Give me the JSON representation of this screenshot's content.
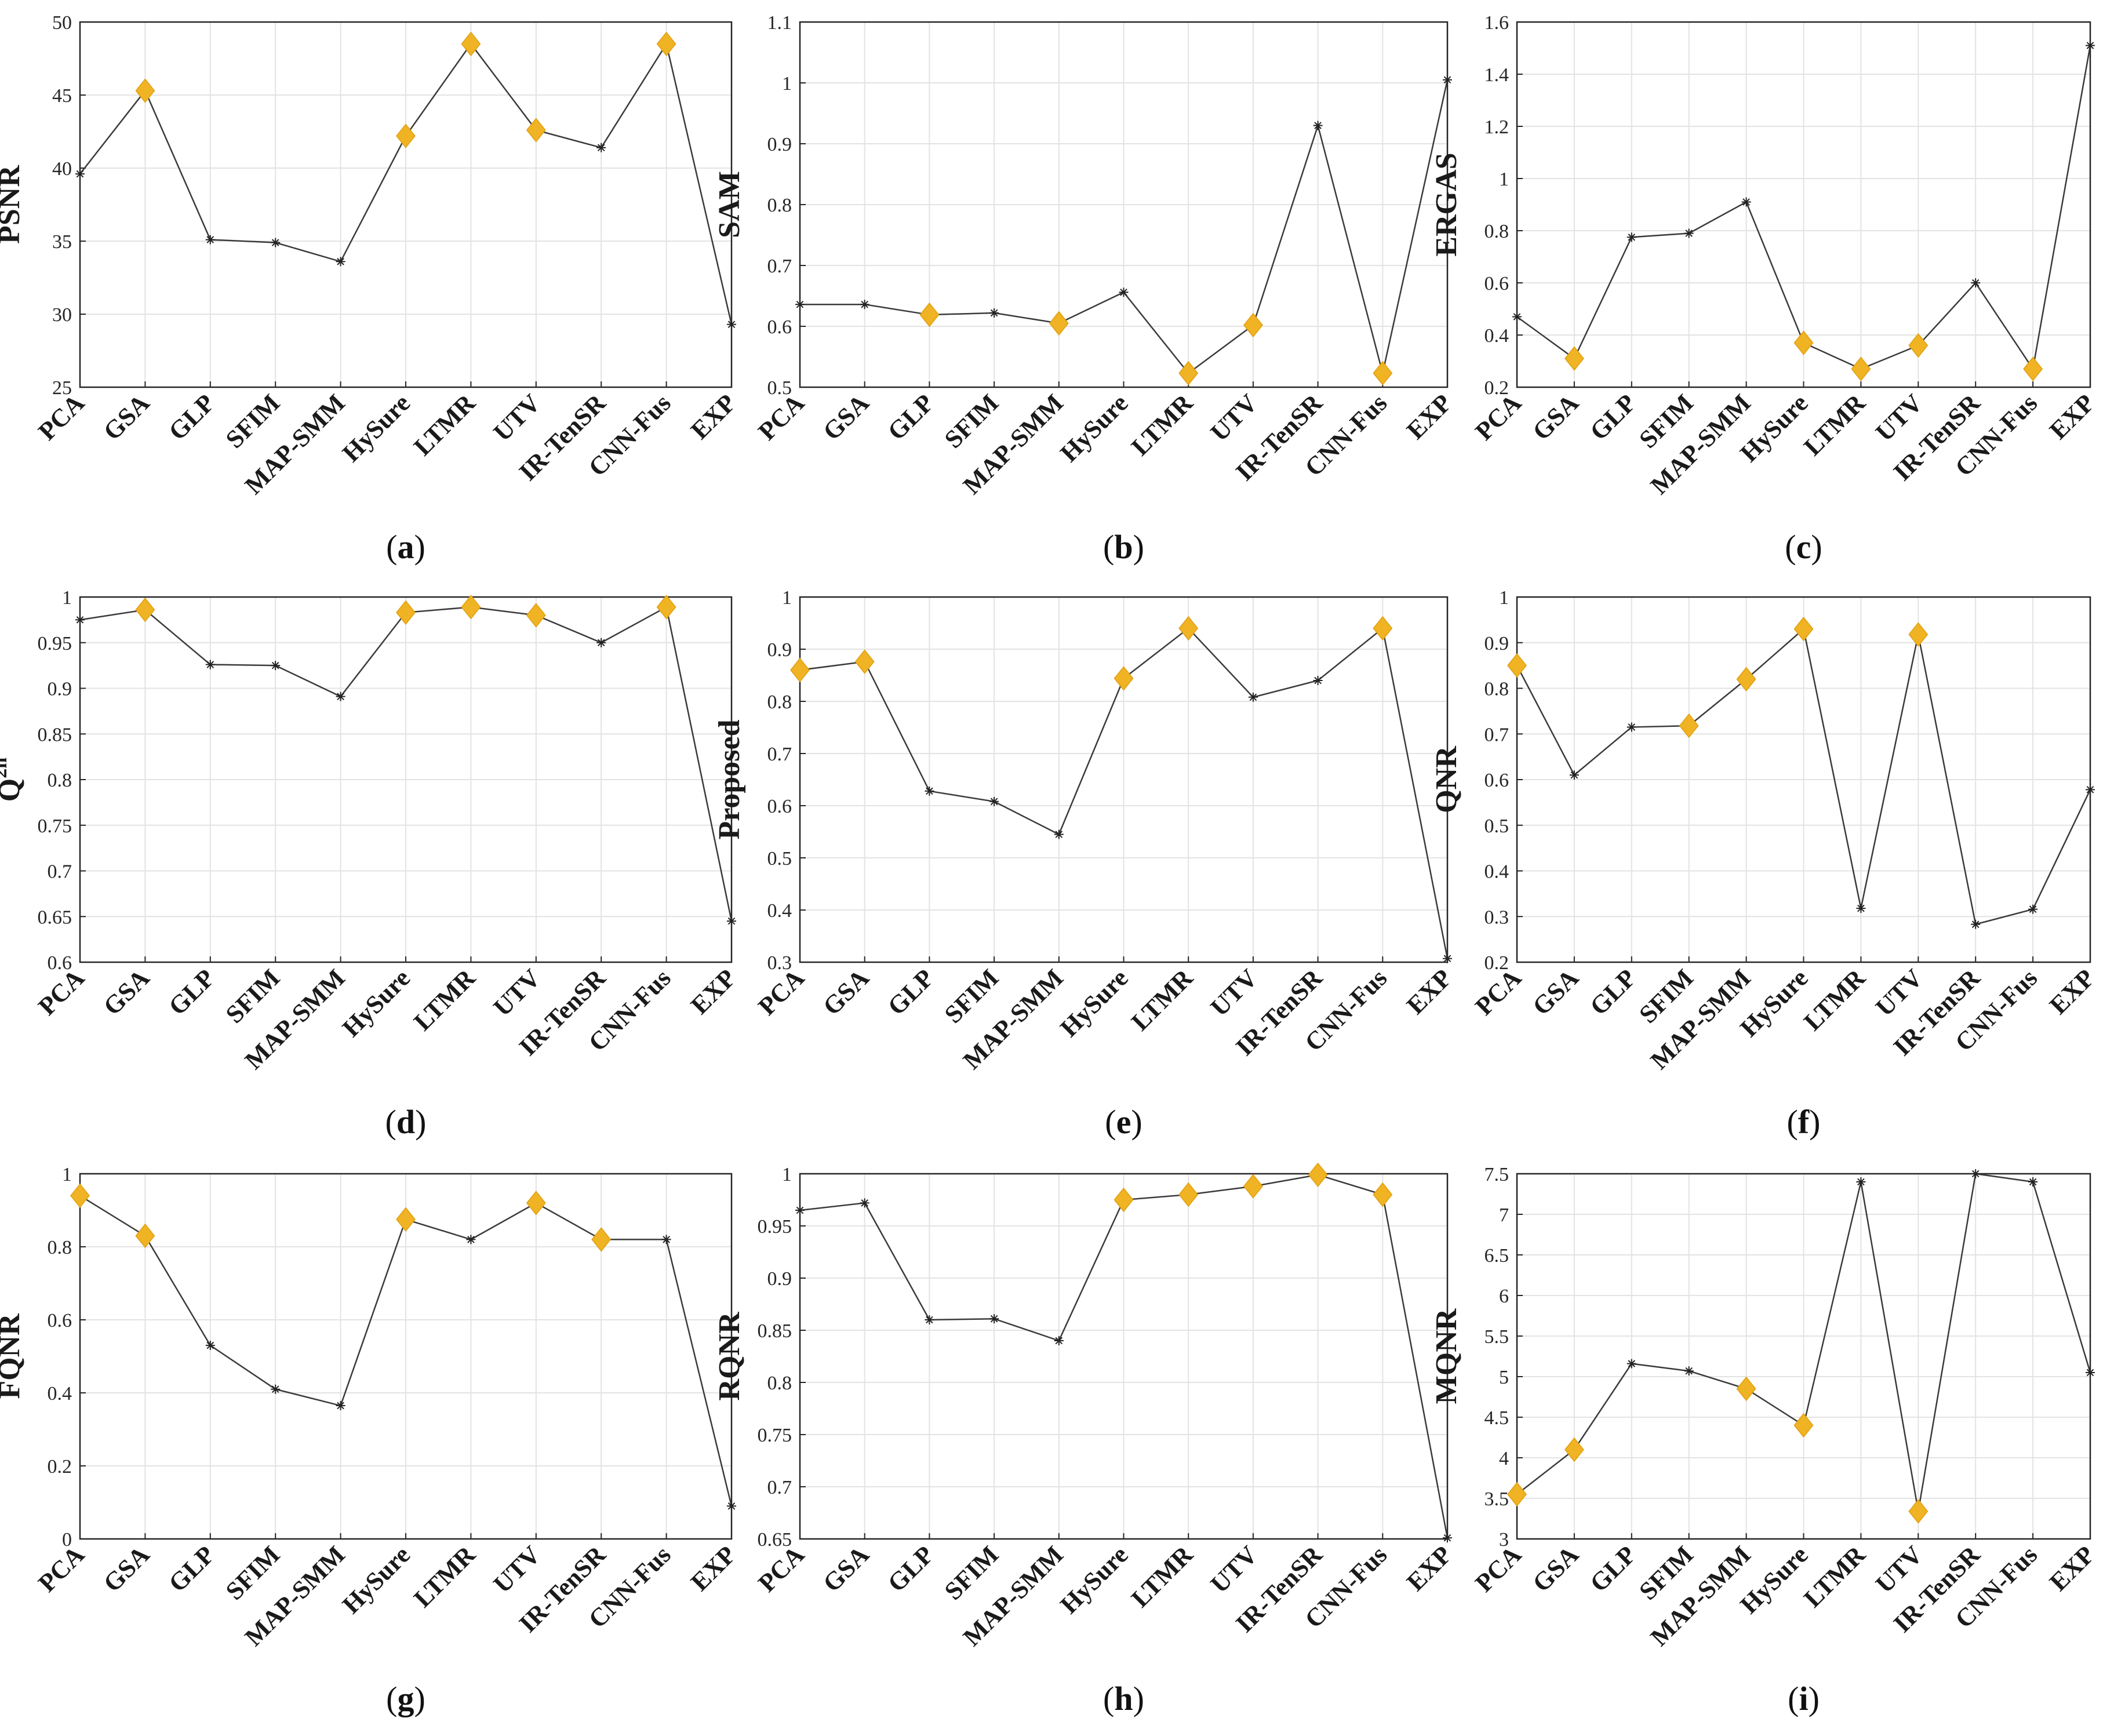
{
  "figure": {
    "categories": [
      "PCA",
      "GSA",
      "GLP",
      "SFIM",
      "MAP-SMM",
      "HySure",
      "LTMR",
      "UTV",
      "IR-TenSR",
      "CNN-Fus",
      "EXP"
    ],
    "highlight_color": "#f0b323",
    "line_color": "#3a3a3a"
  },
  "chart_data": [
    {
      "type": "line",
      "panel_label": "(a)",
      "title": "",
      "xlabel": "",
      "ylabel": "PSNR",
      "ylabel_sup": "",
      "categories": [
        "PCA",
        "GSA",
        "GLP",
        "SFIM",
        "MAP-SMM",
        "HySure",
        "LTMR",
        "UTV",
        "IR-TenSR",
        "CNN-Fus",
        "EXP"
      ],
      "values": [
        39.6,
        45.3,
        35.1,
        34.9,
        33.6,
        42.2,
        48.5,
        42.6,
        41.4,
        48.5,
        29.3
      ],
      "highlighted": [
        false,
        true,
        false,
        false,
        false,
        true,
        true,
        true,
        false,
        true,
        false
      ],
      "ylim": [
        25,
        50
      ],
      "yticks": [
        25,
        30,
        35,
        40,
        45,
        50
      ],
      "ytick_labels": [
        "25",
        "30",
        "35",
        "40",
        "45",
        "50"
      ]
    },
    {
      "type": "line",
      "panel_label": "(b)",
      "title": "",
      "xlabel": "",
      "ylabel": "SAM",
      "ylabel_sup": "",
      "categories": [
        "PCA",
        "GSA",
        "GLP",
        "SFIM",
        "MAP-SMM",
        "HySure",
        "LTMR",
        "UTV",
        "IR-TenSR",
        "CNN-Fus",
        "EXP"
      ],
      "values": [
        0.636,
        0.636,
        0.619,
        0.622,
        0.605,
        0.656,
        0.523,
        0.602,
        0.93,
        0.523,
        1.005
      ],
      "highlighted": [
        false,
        false,
        true,
        false,
        true,
        false,
        true,
        true,
        false,
        true,
        false
      ],
      "ylim": [
        0.5,
        1.1
      ],
      "yticks": [
        0.5,
        0.6,
        0.7,
        0.8,
        0.9,
        1.0,
        1.1
      ],
      "ytick_labels": [
        "0.5",
        "0.6",
        "0.7",
        "0.8",
        "0.9",
        "1",
        "1.1"
      ]
    },
    {
      "type": "line",
      "panel_label": "(c)",
      "title": "",
      "xlabel": "",
      "ylabel": "ERGAS",
      "ylabel_sup": "",
      "categories": [
        "PCA",
        "GSA",
        "GLP",
        "SFIM",
        "MAP-SMM",
        "HySure",
        "LTMR",
        "UTV",
        "IR-TenSR",
        "CNN-Fus",
        "EXP"
      ],
      "values": [
        0.47,
        0.31,
        0.775,
        0.79,
        0.91,
        0.37,
        0.27,
        0.36,
        0.6,
        0.27,
        1.51
      ],
      "highlighted": [
        false,
        true,
        false,
        false,
        false,
        true,
        true,
        true,
        false,
        true,
        false
      ],
      "ylim": [
        0.2,
        1.6
      ],
      "yticks": [
        0.2,
        0.4,
        0.6,
        0.8,
        1.0,
        1.2,
        1.4,
        1.6
      ],
      "ytick_labels": [
        "0.2",
        "0.4",
        "0.6",
        "0.8",
        "1",
        "1.2",
        "1.4",
        "1.6"
      ]
    },
    {
      "type": "line",
      "panel_label": "(d)",
      "title": "",
      "xlabel": "",
      "ylabel": "Q",
      "ylabel_sup": "2n",
      "categories": [
        "PCA",
        "GSA",
        "GLP",
        "SFIM",
        "MAP-SMM",
        "HySure",
        "LTMR",
        "UTV",
        "IR-TenSR",
        "CNN-Fus",
        "EXP"
      ],
      "values": [
        0.975,
        0.986,
        0.926,
        0.925,
        0.891,
        0.983,
        0.989,
        0.98,
        0.95,
        0.989,
        0.645
      ],
      "highlighted": [
        false,
        true,
        false,
        false,
        false,
        true,
        true,
        true,
        false,
        true,
        false
      ],
      "ylim": [
        0.6,
        1.0
      ],
      "yticks": [
        0.6,
        0.65,
        0.7,
        0.75,
        0.8,
        0.85,
        0.9,
        0.95,
        1.0
      ],
      "ytick_labels": [
        "0.6",
        "0.65",
        "0.7",
        "0.75",
        "0.8",
        "0.85",
        "0.9",
        "0.95",
        "1"
      ]
    },
    {
      "type": "line",
      "panel_label": "(e)",
      "title": "",
      "xlabel": "",
      "ylabel": "Proposed",
      "ylabel_sup": "",
      "categories": [
        "PCA",
        "GSA",
        "GLP",
        "SFIM",
        "MAP-SMM",
        "HySure",
        "LTMR",
        "UTV",
        "IR-TenSR",
        "CNN-Fus",
        "EXP"
      ],
      "values": [
        0.86,
        0.876,
        0.628,
        0.608,
        0.545,
        0.844,
        0.94,
        0.808,
        0.84,
        0.94,
        0.307
      ],
      "highlighted": [
        true,
        true,
        false,
        false,
        false,
        true,
        true,
        false,
        false,
        true,
        false
      ],
      "ylim": [
        0.3,
        1.0
      ],
      "yticks": [
        0.3,
        0.4,
        0.5,
        0.6,
        0.7,
        0.8,
        0.9,
        1.0
      ],
      "ytick_labels": [
        "0.3",
        "0.4",
        "0.5",
        "0.6",
        "0.7",
        "0.8",
        "0.9",
        "1"
      ]
    },
    {
      "type": "line",
      "panel_label": "(f)",
      "title": "",
      "xlabel": "",
      "ylabel": "QNR",
      "ylabel_sup": "",
      "categories": [
        "PCA",
        "GSA",
        "GLP",
        "SFIM",
        "MAP-SMM",
        "HySure",
        "LTMR",
        "UTV",
        "IR-TenSR",
        "CNN-Fus",
        "EXP"
      ],
      "values": [
        0.85,
        0.61,
        0.715,
        0.718,
        0.82,
        0.93,
        0.318,
        0.918,
        0.283,
        0.316,
        0.578
      ],
      "highlighted": [
        true,
        false,
        false,
        true,
        true,
        true,
        false,
        true,
        false,
        false,
        false
      ],
      "ylim": [
        0.2,
        1.0
      ],
      "yticks": [
        0.2,
        0.3,
        0.4,
        0.5,
        0.6,
        0.7,
        0.8,
        0.9,
        1.0
      ],
      "ytick_labels": [
        "0.2",
        "0.3",
        "0.4",
        "0.5",
        "0.6",
        "0.7",
        "0.8",
        "0.9",
        "1"
      ]
    },
    {
      "type": "line",
      "panel_label": "(g)",
      "title": "",
      "xlabel": "",
      "ylabel": "FQNR",
      "ylabel_sup": "",
      "categories": [
        "PCA",
        "GSA",
        "GLP",
        "SFIM",
        "MAP-SMM",
        "HySure",
        "LTMR",
        "UTV",
        "IR-TenSR",
        "CNN-Fus",
        "EXP"
      ],
      "values": [
        0.94,
        0.83,
        0.53,
        0.41,
        0.365,
        0.875,
        0.82,
        0.92,
        0.82,
        0.82,
        0.09
      ],
      "highlighted": [
        true,
        true,
        false,
        false,
        false,
        true,
        false,
        true,
        true,
        false,
        false
      ],
      "ylim": [
        0,
        1
      ],
      "yticks": [
        0,
        0.2,
        0.4,
        0.6,
        0.8,
        1.0
      ],
      "ytick_labels": [
        "0",
        "0.2",
        "0.4",
        "0.6",
        "0.8",
        "1"
      ]
    },
    {
      "type": "line",
      "panel_label": "(h)",
      "title": "",
      "xlabel": "",
      "ylabel": "RQNR",
      "ylabel_sup": "",
      "categories": [
        "PCA",
        "GSA",
        "GLP",
        "SFIM",
        "MAP-SMM",
        "HySure",
        "LTMR",
        "UTV",
        "IR-TenSR",
        "CNN-Fus",
        "EXP"
      ],
      "values": [
        0.965,
        0.972,
        0.86,
        0.861,
        0.84,
        0.975,
        0.98,
        0.988,
        0.999,
        0.98,
        0.651
      ],
      "highlighted": [
        false,
        false,
        false,
        false,
        false,
        true,
        true,
        true,
        true,
        true,
        false
      ],
      "ylim": [
        0.65,
        1.0
      ],
      "yticks": [
        0.65,
        0.7,
        0.75,
        0.8,
        0.85,
        0.9,
        0.95,
        1.0
      ],
      "ytick_labels": [
        "0.65",
        "0.7",
        "0.75",
        "0.8",
        "0.85",
        "0.9",
        "0.95",
        "1"
      ]
    },
    {
      "type": "line",
      "panel_label": "(i)",
      "title": "",
      "xlabel": "",
      "ylabel": "MQNR",
      "ylabel_sup": "",
      "categories": [
        "PCA",
        "GSA",
        "GLP",
        "SFIM",
        "MAP-SMM",
        "HySure",
        "LTMR",
        "UTV",
        "IR-TenSR",
        "CNN-Fus",
        "EXP"
      ],
      "values": [
        3.55,
        4.1,
        5.16,
        5.07,
        4.85,
        4.4,
        7.4,
        3.34,
        7.5,
        7.4,
        5.05
      ],
      "highlighted": [
        true,
        true,
        false,
        false,
        true,
        true,
        false,
        true,
        false,
        false,
        false
      ],
      "ylim": [
        3,
        7.5
      ],
      "yticks": [
        3,
        3.5,
        4,
        4.5,
        5,
        5.5,
        6,
        6.5,
        7,
        7.5
      ],
      "ytick_labels": [
        "3",
        "3.5",
        "4",
        "4.5",
        "5",
        "5.5",
        "6",
        "6.5",
        "7",
        "7.5"
      ]
    }
  ]
}
